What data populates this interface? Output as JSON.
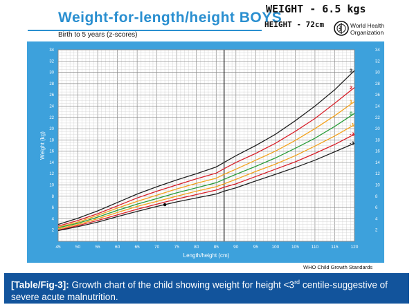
{
  "header": {
    "title": "Weight-for-length/height  BOYS",
    "subtitle": "Birth to 5 years (z-scores)",
    "handwritten_weight": "WEIGHT - 6.5 kgs",
    "handwritten_height": "HEIGHT - 72cm",
    "who_name_line1": "World Health",
    "who_name_line2": "Organization",
    "who_emblem_icon": "who-emblem-icon"
  },
  "footer": {
    "credit": "WHO Child Growth Standards"
  },
  "caption": {
    "label": "[Table/Fig-3]:",
    "text_before_sup": " Growth chart of the child showing weight for height <3",
    "sup": "rd",
    "text_after_sup": " centile-suggestive of severe acute malnutrition."
  },
  "colors": {
    "panel": "#3da1dc",
    "title": "#2a8fd0",
    "caption_bg": "#12549c",
    "z3": "#222222",
    "z2": "#d8202a",
    "z1": "#f3a21c",
    "z0": "#2a9d3a"
  },
  "chart_data": {
    "type": "line",
    "xlabel": "Length/height (cm)",
    "ylabel": "Weight (kg)",
    "xlim": [
      45,
      120
    ],
    "ylim": [
      0,
      34
    ],
    "x_ticks": [
      45,
      50,
      55,
      60,
      65,
      70,
      75,
      80,
      85,
      90,
      95,
      100,
      105,
      110,
      115,
      120
    ],
    "y_ticks": [
      2,
      4,
      6,
      8,
      10,
      12,
      14,
      16,
      18,
      20,
      22,
      24,
      26,
      28,
      30,
      32,
      34
    ],
    "x": [
      45,
      50,
      55,
      60,
      65,
      70,
      75,
      80,
      85,
      87,
      90,
      95,
      100,
      105,
      110,
      115,
      120
    ],
    "series": [
      {
        "name": "3",
        "color": "#222222",
        "values": [
          3.0,
          4.1,
          5.4,
          6.9,
          8.4,
          9.7,
          10.9,
          12.0,
          13.2,
          14.0,
          15.2,
          17.0,
          19.0,
          21.4,
          24.0,
          26.9,
          30.3
        ]
      },
      {
        "name": "2",
        "color": "#d8202a",
        "values": [
          2.7,
          3.7,
          4.9,
          6.3,
          7.7,
          8.9,
          10.0,
          11.1,
          12.1,
          12.9,
          14.0,
          15.6,
          17.4,
          19.5,
          21.8,
          24.5,
          27.3
        ]
      },
      {
        "name": "1",
        "color": "#f3a21c",
        "values": [
          2.5,
          3.4,
          4.6,
          5.9,
          7.1,
          8.2,
          9.3,
          10.3,
          11.2,
          11.9,
          12.8,
          14.4,
          16.0,
          17.9,
          20.0,
          22.3,
          24.8
        ]
      },
      {
        "name": "0",
        "color": "#2a9d3a",
        "values": [
          2.4,
          3.2,
          4.3,
          5.5,
          6.6,
          7.6,
          8.6,
          9.5,
          10.4,
          11.0,
          11.9,
          13.3,
          14.8,
          16.5,
          18.3,
          20.4,
          22.7
        ]
      },
      {
        "name": "-1",
        "color": "#f3a21c",
        "values": [
          2.2,
          3.0,
          4.0,
          5.1,
          6.2,
          7.1,
          8.0,
          8.9,
          9.7,
          10.2,
          11.0,
          12.4,
          13.7,
          15.2,
          16.9,
          18.7,
          20.7
        ]
      },
      {
        "name": "-2",
        "color": "#d8202a",
        "values": [
          2.0,
          2.8,
          3.7,
          4.7,
          5.7,
          6.6,
          7.5,
          8.3,
          9.1,
          9.6,
          10.2,
          11.5,
          12.8,
          14.1,
          15.6,
          17.2,
          19.0
        ]
      },
      {
        "name": "-3",
        "color": "#222222",
        "values": [
          1.9,
          2.6,
          3.4,
          4.4,
          5.3,
          6.2,
          7.0,
          7.7,
          8.4,
          8.9,
          9.5,
          10.7,
          11.9,
          13.1,
          14.4,
          15.9,
          17.4
        ]
      }
    ],
    "point": {
      "x": 72,
      "y": 6.5
    },
    "grid": true,
    "legend": "right"
  }
}
